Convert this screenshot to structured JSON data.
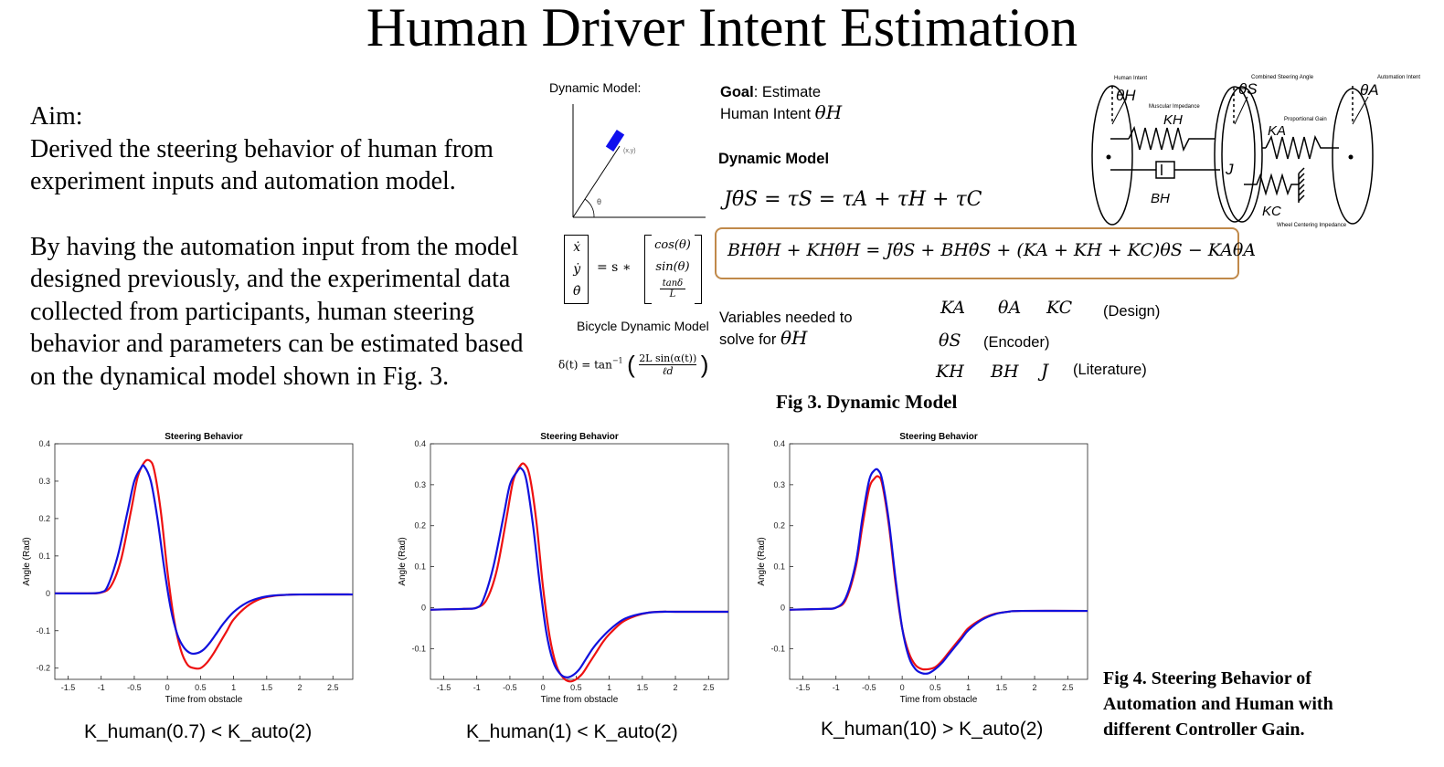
{
  "title": "Human Driver Intent Estimation",
  "aim": {
    "heading": "Aim:",
    "line1": "Derived the steering behavior of human from experiment inputs and automation model.",
    "line2": "By having the automation input from the model designed previously, and the experimental data collected from participants, human steering behavior and parameters can be estimated based on the dynamical model shown in Fig. 3."
  },
  "dynamic_model_panel": {
    "label": "Dynamic Model:",
    "point_label": "(x,y)",
    "angle_label": "θ",
    "bicycle_label": "Bicycle Dynamic Model",
    "state_vector": [
      "ẋ",
      "ẏ",
      "θ̇"
    ],
    "rhs_prefix": "= s ∗",
    "rhs_vector": [
      "cos(θ)",
      "sin(θ)",
      "tanδ",
      "L"
    ],
    "delta_eq_left": "δ(t) = tan",
    "delta_eq_sup": "−1",
    "delta_num": "2L sin(α(t))",
    "delta_den": "ℓd"
  },
  "goal": {
    "bold": "Goal",
    "rest": ": Estimate",
    "line2": "Human Intent",
    "symbol": "θH"
  },
  "model_heading": "Dynamic Model",
  "eq1": "Jθ̈S = τS = τA + τH + τC",
  "eq2": "BHθ̇H + KHθH = Jθ̈S + BHθ̇S + (KA + KH + KC)θS − KAθA",
  "variables": {
    "label1": "Variables needed to",
    "label2": "solve for",
    "symbol": "θH",
    "row1": {
      "syms": [
        "KA",
        "θA",
        "KC"
      ],
      "tag": "(Design)"
    },
    "row2": {
      "syms": [
        "θS"
      ],
      "tag": "(Encoder)"
    },
    "row3": {
      "syms": [
        "KH",
        "BH",
        "J"
      ],
      "tag": "(Literature)"
    }
  },
  "fig3_caption": "Fig 3. Dynamic Model",
  "mech_diagram": {
    "human_intent": "Human Intent",
    "theta_h": "θH",
    "muscular": "Muscular Impedance",
    "k_h": "KH",
    "b_h": "BH",
    "combined": "Combined Steering Angle",
    "theta_s": "θS",
    "j": "J",
    "prop_gain": "Proportional Gain",
    "k_a": "KA",
    "k_c": "KC",
    "wheel_centering": "Wheel Centering Impedance",
    "auto_intent": "Automation Intent",
    "theta_a": "θA"
  },
  "fig4_caption": "Fig 4. Steering Behavior of Automation and Human with different Controller Gain.",
  "colors": {
    "human": "#ee1111",
    "automation": "#1111dd",
    "box": "#c0894a"
  },
  "chart_data": [
    {
      "type": "line",
      "title": "Steering Behavior",
      "xlabel": "Time from obstacle",
      "ylabel": "Angle (Rad)",
      "xlim": [
        -1.7,
        2.8
      ],
      "ylim": [
        -0.23,
        0.4
      ],
      "xticks": [
        -1.5,
        -1,
        -0.5,
        0,
        0.5,
        1,
        1.5,
        2,
        2.5
      ],
      "yticks": [
        0.4,
        0.3,
        0.2,
        0.1,
        0,
        -0.1,
        -0.2
      ],
      "caption": "K_human(0.7) < K_auto(2)",
      "series": [
        {
          "color": "red",
          "x": [
            -1.7,
            -1.2,
            -1.0,
            -0.85,
            -0.7,
            -0.55,
            -0.45,
            -0.35,
            -0.27,
            -0.2,
            -0.1,
            0.0,
            0.1,
            0.2,
            0.3,
            0.4,
            0.5,
            0.6,
            0.7,
            0.8,
            0.9,
            1.0,
            1.2,
            1.4,
            1.6,
            1.8,
            2.0,
            2.8
          ],
          "y": [
            0,
            0,
            0.002,
            0.02,
            0.09,
            0.22,
            0.31,
            0.35,
            0.355,
            0.33,
            0.22,
            0.06,
            -0.07,
            -0.15,
            -0.19,
            -0.2,
            -0.2,
            -0.185,
            -0.16,
            -0.13,
            -0.1,
            -0.07,
            -0.035,
            -0.015,
            -0.007,
            -0.004,
            -0.003,
            -0.003
          ]
        },
        {
          "color": "blue",
          "x": [
            -1.7,
            -1.2,
            -1.0,
            -0.9,
            -0.75,
            -0.6,
            -0.5,
            -0.4,
            -0.35,
            -0.25,
            -0.15,
            -0.05,
            0.05,
            0.15,
            0.25,
            0.35,
            0.45,
            0.55,
            0.65,
            0.75,
            0.85,
            1.0,
            1.2,
            1.4,
            1.6,
            1.8,
            2.0,
            2.8
          ],
          "y": [
            0,
            0,
            0.003,
            0.02,
            0.1,
            0.22,
            0.3,
            0.335,
            0.34,
            0.3,
            0.2,
            0.07,
            -0.04,
            -0.11,
            -0.145,
            -0.16,
            -0.16,
            -0.15,
            -0.13,
            -0.105,
            -0.08,
            -0.05,
            -0.025,
            -0.012,
            -0.006,
            -0.004,
            -0.003,
            -0.003
          ]
        }
      ]
    },
    {
      "type": "line",
      "title": "Steering Behavior",
      "xlabel": "Time from obstacle",
      "ylabel": "Angle (Rad)",
      "xlim": [
        -1.7,
        2.8
      ],
      "ylim": [
        -0.175,
        0.4
      ],
      "xticks": [
        -1.5,
        -1,
        -0.5,
        0,
        0.5,
        1,
        1.5,
        2,
        2.5
      ],
      "yticks": [
        0.4,
        0.3,
        0.2,
        0.1,
        0,
        -0.1
      ],
      "caption": "K_human(1) < K_auto(2)",
      "series": [
        {
          "color": "red",
          "x": [
            -1.7,
            -1.2,
            -1.0,
            -0.85,
            -0.7,
            -0.55,
            -0.45,
            -0.35,
            -0.28,
            -0.2,
            -0.1,
            0.0,
            0.1,
            0.2,
            0.3,
            0.4,
            0.5,
            0.6,
            0.7,
            0.8,
            0.9,
            1.0,
            1.2,
            1.4,
            1.6,
            1.8,
            2.0,
            2.8
          ],
          "y": [
            -0.005,
            -0.003,
            0.0,
            0.02,
            0.09,
            0.22,
            0.31,
            0.345,
            0.35,
            0.32,
            0.21,
            0.05,
            -0.07,
            -0.14,
            -0.17,
            -0.18,
            -0.175,
            -0.16,
            -0.135,
            -0.11,
            -0.085,
            -0.065,
            -0.035,
            -0.02,
            -0.012,
            -0.01,
            -0.01,
            -0.01
          ]
        },
        {
          "color": "blue",
          "x": [
            -1.7,
            -1.2,
            -1.0,
            -0.9,
            -0.75,
            -0.6,
            -0.5,
            -0.4,
            -0.33,
            -0.25,
            -0.15,
            -0.05,
            0.05,
            0.15,
            0.25,
            0.35,
            0.45,
            0.55,
            0.65,
            0.75,
            0.85,
            1.0,
            1.2,
            1.4,
            1.6,
            1.8,
            2.0,
            2.8
          ],
          "y": [
            -0.005,
            -0.003,
            0.0,
            0.02,
            0.1,
            0.22,
            0.3,
            0.33,
            0.34,
            0.31,
            0.2,
            0.06,
            -0.06,
            -0.13,
            -0.16,
            -0.17,
            -0.165,
            -0.15,
            -0.125,
            -0.1,
            -0.08,
            -0.055,
            -0.03,
            -0.018,
            -0.012,
            -0.01,
            -0.01,
            -0.01
          ]
        }
      ]
    },
    {
      "type": "line",
      "title": "Steering Behavior",
      "xlabel": "Time from obstacle",
      "ylabel": "Angle (Rad)",
      "xlim": [
        -1.7,
        2.8
      ],
      "ylim": [
        -0.175,
        0.4
      ],
      "xticks": [
        -1.5,
        -1,
        -0.5,
        0,
        0.5,
        1,
        1.5,
        2,
        2.5
      ],
      "yticks": [
        0.4,
        0.3,
        0.2,
        0.1,
        0,
        -0.1
      ],
      "caption": "K_human(10) > K_auto(2)",
      "series": [
        {
          "color": "red",
          "x": [
            -1.7,
            -1.2,
            -1.0,
            -0.85,
            -0.7,
            -0.6,
            -0.5,
            -0.42,
            -0.36,
            -0.3,
            -0.2,
            -0.1,
            0.0,
            0.1,
            0.2,
            0.3,
            0.4,
            0.5,
            0.6,
            0.7,
            0.8,
            0.9,
            1.0,
            1.2,
            1.4,
            1.6,
            1.8,
            2.8
          ],
          "y": [
            -0.005,
            -0.003,
            0.0,
            0.02,
            0.1,
            0.2,
            0.29,
            0.315,
            0.32,
            0.3,
            0.2,
            0.06,
            -0.05,
            -0.11,
            -0.14,
            -0.15,
            -0.15,
            -0.145,
            -0.13,
            -0.11,
            -0.09,
            -0.07,
            -0.05,
            -0.028,
            -0.015,
            -0.01,
            -0.008,
            -0.008
          ]
        },
        {
          "color": "blue",
          "x": [
            -1.7,
            -1.2,
            -1.0,
            -0.85,
            -0.7,
            -0.6,
            -0.5,
            -0.42,
            -0.36,
            -0.3,
            -0.2,
            -0.1,
            0.0,
            0.1,
            0.2,
            0.3,
            0.4,
            0.5,
            0.6,
            0.7,
            0.8,
            0.9,
            1.0,
            1.2,
            1.4,
            1.6,
            1.8,
            2.8
          ],
          "y": [
            -0.005,
            -0.003,
            0.0,
            0.025,
            0.11,
            0.22,
            0.31,
            0.335,
            0.335,
            0.31,
            0.21,
            0.07,
            -0.05,
            -0.12,
            -0.15,
            -0.16,
            -0.16,
            -0.15,
            -0.135,
            -0.115,
            -0.095,
            -0.075,
            -0.055,
            -0.03,
            -0.016,
            -0.01,
            -0.008,
            -0.008
          ]
        }
      ]
    }
  ]
}
